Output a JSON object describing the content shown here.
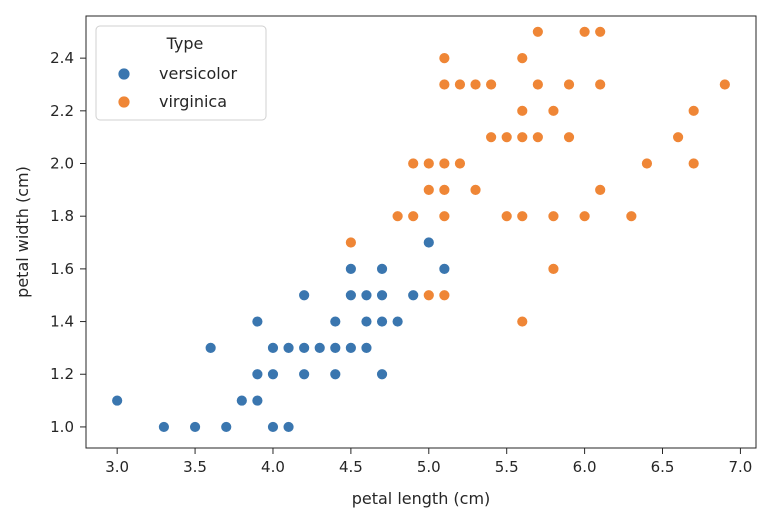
{
  "chart_data": {
    "type": "scatter",
    "xlabel": "petal length (cm)",
    "ylabel": "petal width (cm)",
    "xlim": [
      2.8,
      7.1
    ],
    "ylim": [
      0.92,
      2.56
    ],
    "xticks": [
      3.0,
      3.5,
      4.0,
      4.5,
      5.0,
      5.5,
      6.0,
      6.5,
      7.0
    ],
    "xtick_labels": [
      "3.0",
      "3.5",
      "4.0",
      "4.5",
      "5.0",
      "5.5",
      "6.0",
      "6.5",
      "7.0"
    ],
    "yticks": [
      1.0,
      1.2,
      1.4,
      1.6,
      1.8,
      2.0,
      2.2,
      2.4
    ],
    "ytick_labels": [
      "1.0",
      "1.2",
      "1.4",
      "1.6",
      "1.8",
      "2.0",
      "2.2",
      "2.4"
    ],
    "grid": false,
    "legend": {
      "title": "Type",
      "placement": "top-left"
    },
    "series": [
      {
        "name": "versicolor",
        "color": "#3a76af",
        "points": [
          [
            3.0,
            1.1
          ],
          [
            3.3,
            1.0
          ],
          [
            3.5,
            1.0
          ],
          [
            3.6,
            1.3
          ],
          [
            3.7,
            1.0
          ],
          [
            3.8,
            1.1
          ],
          [
            3.9,
            1.1
          ],
          [
            3.9,
            1.2
          ],
          [
            3.9,
            1.4
          ],
          [
            4.0,
            1.0
          ],
          [
            4.0,
            1.2
          ],
          [
            4.0,
            1.3
          ],
          [
            4.1,
            1.0
          ],
          [
            4.1,
            1.3
          ],
          [
            4.2,
            1.2
          ],
          [
            4.2,
            1.3
          ],
          [
            4.2,
            1.5
          ],
          [
            4.3,
            1.3
          ],
          [
            4.4,
            1.2
          ],
          [
            4.4,
            1.3
          ],
          [
            4.4,
            1.4
          ],
          [
            4.5,
            1.3
          ],
          [
            4.5,
            1.5
          ],
          [
            4.5,
            1.6
          ],
          [
            4.6,
            1.3
          ],
          [
            4.6,
            1.4
          ],
          [
            4.6,
            1.5
          ],
          [
            4.7,
            1.2
          ],
          [
            4.7,
            1.4
          ],
          [
            4.7,
            1.5
          ],
          [
            4.7,
            1.6
          ],
          [
            4.8,
            1.4
          ],
          [
            4.9,
            1.5
          ],
          [
            5.0,
            1.7
          ],
          [
            5.1,
            1.6
          ]
        ]
      },
      {
        "name": "virginica",
        "color": "#ef8636",
        "points": [
          [
            4.5,
            1.7
          ],
          [
            4.8,
            1.8
          ],
          [
            4.9,
            1.8
          ],
          [
            4.9,
            2.0
          ],
          [
            5.0,
            1.5
          ],
          [
            5.0,
            1.9
          ],
          [
            5.0,
            2.0
          ],
          [
            5.1,
            1.5
          ],
          [
            5.1,
            1.8
          ],
          [
            5.1,
            1.9
          ],
          [
            5.1,
            2.0
          ],
          [
            5.1,
            2.3
          ],
          [
            5.1,
            2.4
          ],
          [
            5.2,
            2.0
          ],
          [
            5.2,
            2.3
          ],
          [
            5.3,
            1.9
          ],
          [
            5.3,
            2.3
          ],
          [
            5.4,
            2.1
          ],
          [
            5.4,
            2.3
          ],
          [
            5.5,
            1.8
          ],
          [
            5.5,
            2.1
          ],
          [
            5.6,
            1.4
          ],
          [
            5.6,
            1.8
          ],
          [
            5.6,
            2.1
          ],
          [
            5.6,
            2.2
          ],
          [
            5.6,
            2.4
          ],
          [
            5.7,
            2.1
          ],
          [
            5.7,
            2.3
          ],
          [
            5.7,
            2.5
          ],
          [
            5.8,
            1.6
          ],
          [
            5.8,
            1.8
          ],
          [
            5.8,
            2.2
          ],
          [
            5.9,
            2.1
          ],
          [
            5.9,
            2.3
          ],
          [
            6.0,
            1.8
          ],
          [
            6.0,
            2.5
          ],
          [
            6.1,
            1.9
          ],
          [
            6.1,
            2.3
          ],
          [
            6.1,
            2.5
          ],
          [
            6.3,
            1.8
          ],
          [
            6.4,
            2.0
          ],
          [
            6.6,
            2.1
          ],
          [
            6.7,
            2.0
          ],
          [
            6.7,
            2.2
          ],
          [
            6.9,
            2.3
          ]
        ]
      }
    ]
  }
}
